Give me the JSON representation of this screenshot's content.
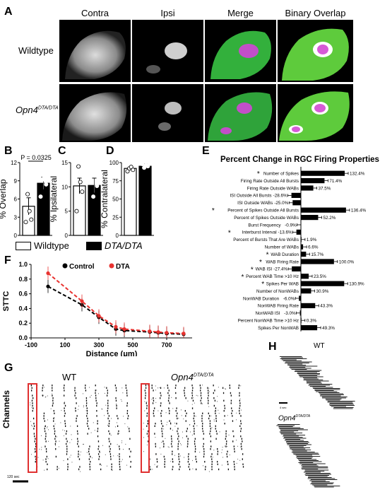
{
  "panels": {
    "A": "A",
    "B": "B",
    "C": "C",
    "D": "D",
    "E": "E",
    "F": "F",
    "G": "G",
    "H": "H"
  },
  "panel_a": {
    "columns": [
      "Contra",
      "Ipsi",
      "Merge",
      "Binary Overlap"
    ],
    "rows": [
      "Wildtype",
      "Opn4"
    ],
    "row2_sup": "DTA/DTA"
  },
  "panel_b": {
    "ylabel": "% Overlap",
    "pvalue": "P = 0.0325",
    "ticks": [
      "0",
      "3",
      "6",
      "9",
      "12"
    ],
    "values": [
      4.8,
      8.6
    ],
    "errors": [
      1.4,
      1.0
    ],
    "points": [
      [
        2.2,
        6.8,
        4.0,
        2.6
      ],
      [
        6.4,
        9.2,
        9.6,
        8.4
      ]
    ],
    "ymax": 12
  },
  "panel_c": {
    "ylabel": "% Ipsilateral",
    "ticks": [
      "0",
      "5",
      "10",
      "15"
    ],
    "values": [
      10.2,
      10.3
    ],
    "errors": [
      1.6,
      1.5
    ],
    "points": [
      [
        5.0,
        14.2,
        11.0,
        9.0
      ],
      [
        11.0,
        8.0,
        12.5,
        10.2
      ]
    ],
    "ymax": 15
  },
  "panel_d": {
    "ylabel": "% Contralateral",
    "ticks": [
      "0",
      "25",
      "50",
      "75",
      "100"
    ],
    "values": [
      92,
      95
    ],
    "errors": [
      2,
      3
    ],
    "points": [
      [
        88,
        92,
        94,
        90
      ],
      [
        98,
        93,
        96,
        95
      ]
    ],
    "ymax": 100
  },
  "legend_bottom": {
    "wildtype": "Wildtype",
    "dta": "DTA/DTA"
  },
  "chart_data": [
    {
      "type": "bar",
      "title": "Percent Change in RGC Firing Properties",
      "categories": [
        "Number of Spikes",
        "Firing Rate Outside All Bursts",
        "Firing Rate Outside WABs",
        "ISI Outside All Bursts",
        "ISI Outside WABs",
        "Percent of Spikes Outside All Bursts",
        "Percent of Spikes Outside WABs",
        "Burst Frequency",
        "Interburst Interval",
        "Percent of Bursts That Are WABs",
        "Number of WABs",
        "WAB Duration",
        "WAB Firing Rate",
        "WAB ISI",
        "Percent WAB Time >10 Hz",
        "Spikes Per WAB",
        "Number of NonWABs",
        "NonWAB Duration",
        "NonWAB Firing Rate",
        "NonWAB ISI",
        "Percent NonWAB Time >10 Hz",
        "Spikes Per NonWAB"
      ],
      "values": [
        132.4,
        71.4,
        37.5,
        -28.6,
        -25.0,
        136.4,
        52.2,
        -0.9,
        -13.6,
        1.9,
        6.6,
        15.7,
        100.0,
        -27.4,
        23.5,
        130.9,
        30.9,
        -6.0,
        43.3,
        -3.0,
        0.3,
        49.3
      ],
      "value_labels": [
        "132.4%",
        "71.4%",
        "37.5%",
        "-28.6%",
        "-25.0%",
        "136.4%",
        "52.2%",
        "-0.9%",
        "-13.6%",
        "1.9%",
        "6.6%",
        "15.7%",
        "100.0%",
        "-27.4%",
        "23.5%",
        "130.9%",
        "30.9%",
        "-6.0%",
        "43.3%",
        "-3.0%",
        "0.3%",
        "49.3%"
      ],
      "significant": [
        true,
        false,
        false,
        false,
        false,
        true,
        false,
        false,
        true,
        false,
        false,
        true,
        true,
        true,
        true,
        true,
        false,
        false,
        false,
        false,
        false,
        false
      ],
      "orientation": "horizontal",
      "star": "*"
    },
    {
      "type": "line",
      "ylabel": "STTC",
      "xlabel": "Distance (μm)",
      "xticks": [
        "-100",
        "100",
        "300",
        "500",
        "700"
      ],
      "yticks": [
        "0.0",
        "0.2",
        "0.4",
        "0.6",
        "0.8",
        "1.0"
      ],
      "xlim": [
        -100,
        850
      ],
      "ylim": [
        0,
        1.0
      ],
      "series": [
        {
          "name": "Control",
          "color": "#000000",
          "x": [
            0,
            200,
            300,
            400,
            450,
            600,
            650,
            700,
            800
          ],
          "y": [
            0.7,
            0.45,
            0.28,
            0.12,
            0.1,
            0.08,
            0.07,
            0.06,
            0.05
          ]
        },
        {
          "name": "DTA",
          "color": "#e8322f",
          "x": [
            0,
            200,
            300,
            400,
            450,
            600,
            650,
            700,
            800
          ],
          "y": [
            0.88,
            0.5,
            0.3,
            0.15,
            0.12,
            0.09,
            0.08,
            0.07,
            0.06
          ]
        }
      ]
    }
  ],
  "panel_g": {
    "wt": "WT",
    "opn4": "Opn4",
    "sup": "DTA/DTA",
    "ylabel": "Channels",
    "scale": "120 sec"
  },
  "panel_h": {
    "wt": "WT",
    "opn4": "Opn4",
    "sup": "DTA/DTA",
    "scale": "4 sec"
  }
}
